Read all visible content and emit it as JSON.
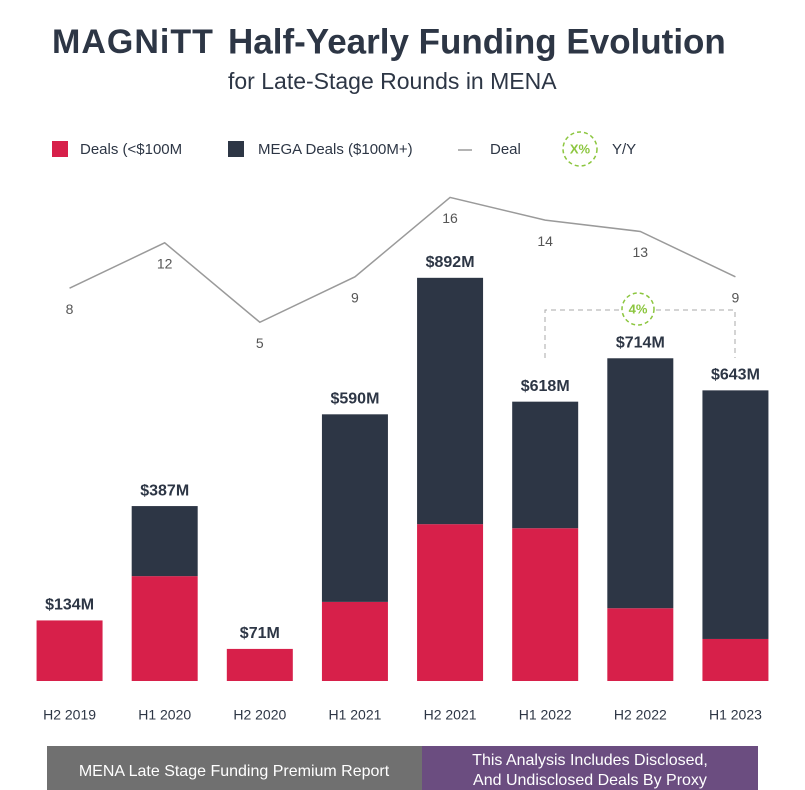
{
  "logo": "MAGNiTT",
  "chart_data": {
    "type": "stacked_bar_line",
    "title": "Half-Yearly Funding Evolution",
    "subtitle": "for Late-Stage Rounds in MENA",
    "categories": [
      "H2 2019",
      "H1 2020",
      "H2 2020",
      "H1 2021",
      "H2 2021",
      "H1 2022",
      "H2 2022",
      "H1 2023"
    ],
    "series": [
      {
        "name": "Deals (<$100M",
        "color": "#d7204a",
        "values": [
          134,
          232,
          71,
          175,
          347,
          338,
          161,
          93
        ]
      },
      {
        "name": "MEGA Deals ($100M+)",
        "color": "#2d3645",
        "values": [
          0,
          155,
          0,
          415,
          545,
          280,
          553,
          550
        ]
      },
      {
        "name": "Deal",
        "color": "#9a9a9a",
        "axis": "y2",
        "values": [
          8,
          12,
          5,
          9,
          16,
          14,
          13,
          9
        ]
      }
    ],
    "totals": {
      "values": [
        134,
        387,
        71,
        590,
        892,
        618,
        714,
        643
      ],
      "value_labels": [
        "$134M",
        "$387M",
        "$71M",
        "$590M",
        "$892M",
        "$618M",
        "$714M",
        "$643M"
      ]
    },
    "yoy_legend": {
      "symbol": "X%",
      "label": "Y/Y"
    },
    "annotations": [
      {
        "text": "4%"
      }
    ],
    "ylim": [
      0,
      1000
    ],
    "y2lim": [
      0,
      20
    ]
  },
  "footer": {
    "left": "MENA Late Stage Funding Premium Report",
    "right": [
      "This Analysis Includes Disclosed,",
      "And Undisclosed Deals By Proxy"
    ]
  }
}
